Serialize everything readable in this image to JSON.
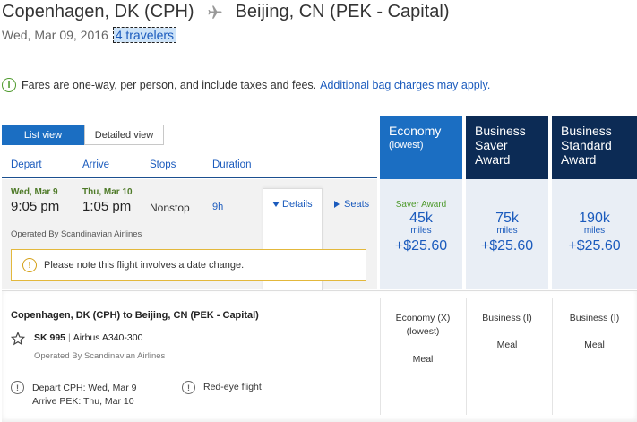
{
  "header": {
    "origin": "Copenhagen, DK (CPH)",
    "destination": "Beijing, CN (PEK - Capital)",
    "date": "Wed, Mar 09, 2016",
    "travelers": "4 travelers"
  },
  "notice": {
    "text": "Fares are one-way, per person, and include taxes and fees.",
    "link": "Additional bag charges may apply."
  },
  "view_toggle": {
    "list": "List view",
    "detailed": "Detailed view"
  },
  "columns": {
    "depart": "Depart",
    "arrive": "Arrive",
    "stops": "Stops",
    "duration": "Duration"
  },
  "fare_headers": [
    {
      "title": "Economy",
      "sub": "(lowest)"
    },
    {
      "title": "Business Saver Award"
    },
    {
      "title": "Business Standard Award"
    }
  ],
  "flight": {
    "depart_date": "Wed, Mar 9",
    "depart_time": "9:05 pm",
    "arrive_date": "Thu, Mar 10",
    "arrive_time": "1:05 pm",
    "stops": "Nonstop",
    "duration": "9h",
    "details_link": "Details",
    "seats_link": "Seats",
    "operated_by": "Operated By Scandinavian Airlines",
    "date_change_notice": "Please note this flight involves a date change."
  },
  "fares": [
    {
      "award": "Saver Award",
      "miles": "45k",
      "miles_label": "miles",
      "price": "+$25.60"
    },
    {
      "award": "",
      "miles": "75k",
      "miles_label": "miles",
      "price": "+$25.60"
    },
    {
      "award": "",
      "miles": "190k",
      "miles_label": "miles",
      "price": "+$25.60"
    }
  ],
  "details_panel": {
    "title": "Copenhagen, DK (CPH) to Beijing, CN (PEK - Capital)",
    "flight_number": "SK 995",
    "aircraft": "Airbus A340-300",
    "operated_by": "Operated By Scandinavian Airlines",
    "depart_info": "Depart CPH: Wed, Mar 9",
    "arrive_info": "Arrive PEK: Thu, Mar 10",
    "red_eye": "Red-eye flight",
    "cabins": [
      {
        "line1": "Economy (X)",
        "line2": "(lowest)",
        "meal": "Meal"
      },
      {
        "line1": "Business (I)",
        "line2": "",
        "meal": "Meal"
      },
      {
        "line1": "Business (I)",
        "line2": "",
        "meal": "Meal"
      }
    ]
  },
  "colors": {
    "primary_blue": "#1b6ec2",
    "dark_navy": "#0c2b55",
    "link_blue": "#1b5bbd",
    "green": "#4e9a2c",
    "warning": "#e3b83c"
  }
}
